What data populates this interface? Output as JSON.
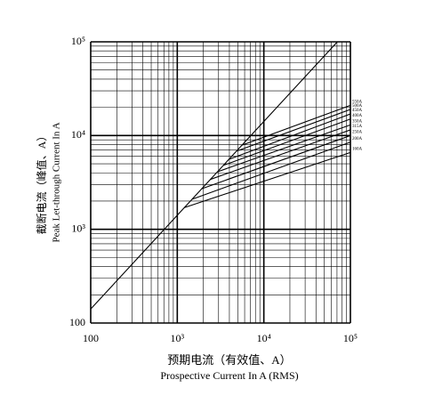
{
  "chart_data": {
    "type": "line",
    "x_label": "预期电流（有效值、A）",
    "x_label_en": "Prospective Current In A (RMS)",
    "y_label": "截断电流（峰值、A）",
    "y_label_en": "Peak Let-through Current In A",
    "log_x": true,
    "log_y": true,
    "grid": true,
    "minor_grid": true,
    "xlim": [
      100,
      100000
    ],
    "ylim": [
      100,
      100000
    ],
    "xticks": [
      100,
      {
        "value": 1000,
        "label": "10³"
      },
      {
        "value": 10000,
        "label": "10⁴"
      },
      {
        "value": 100000,
        "label": "10⁵"
      }
    ],
    "yticks": [
      100,
      {
        "value": 1000,
        "label": "10³"
      },
      {
        "value": 10000,
        "label": "10⁴"
      },
      {
        "value": 100000,
        "label": "10⁵"
      }
    ],
    "series": [
      {
        "color": "#000000",
        "x": [
          100,
          70700
        ],
        "values": [
          141,
          100000
        ]
      },
      {
        "name": "550A",
        "color": "#000000",
        "x": [
          5600,
          100000
        ],
        "values": [
          7900,
          21000
        ]
      },
      {
        "name": "500A",
        "color": "#000000",
        "x": [
          4800,
          100000
        ],
        "values": [
          6800,
          19000
        ]
      },
      {
        "name": "450A",
        "color": "#000000",
        "x": [
          4000,
          100000
        ],
        "values": [
          5600,
          17000
        ]
      },
      {
        "name": "400A",
        "color": "#000000",
        "x": [
          3400,
          100000
        ],
        "values": [
          4800,
          15000
        ]
      },
      {
        "name": "350A",
        "color": "#000000",
        "x": [
          2900,
          100000
        ],
        "values": [
          4100,
          13000
        ]
      },
      {
        "name": "315A",
        "color": "#000000",
        "x": [
          2400,
          100000
        ],
        "values": [
          3400,
          11500
        ]
      },
      {
        "name": "250A",
        "color": "#000000",
        "x": [
          1900,
          100000
        ],
        "values": [
          2700,
          10000
        ]
      },
      {
        "name": "200A",
        "color": "#000000",
        "x": [
          1500,
          100000
        ],
        "values": [
          2100,
          8500
        ]
      },
      {
        "name": "160A",
        "color": "#000000",
        "x": [
          1200,
          100000
        ],
        "values": [
          1700,
          6600
        ]
      }
    ]
  }
}
